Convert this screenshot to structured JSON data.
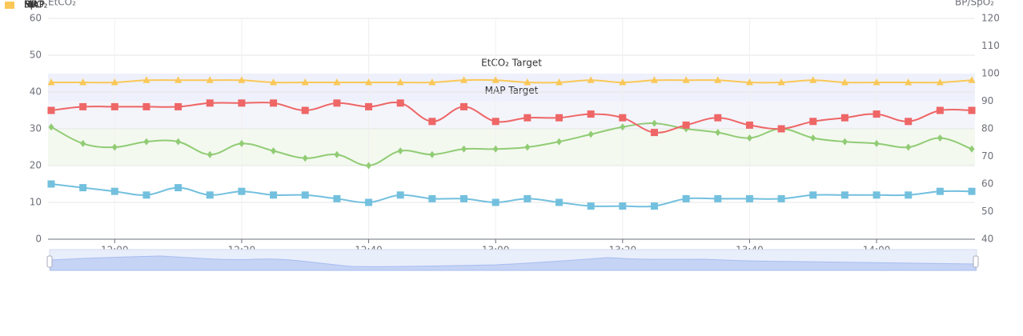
{
  "chart_data": {
    "type": "line",
    "y_axis_label": "EtCO₂",
    "y2_axis_label": "BP/SpO₂",
    "x": [
      "11:50",
      "11:55",
      "12:00",
      "12:05",
      "12:10",
      "12:15",
      "12:20",
      "12:25",
      "12:30",
      "12:35",
      "12:40",
      "12:45",
      "12:50",
      "12:55",
      "13:00",
      "13:05",
      "13:10",
      "13:15",
      "13:20",
      "13:25",
      "13:30",
      "13:35",
      "13:40",
      "13:45",
      "13:50",
      "13:55",
      "14:00",
      "14:05",
      "14:10",
      "14:15"
    ],
    "xlim": [
      "11:49:30",
      "14:15:30"
    ],
    "xticks": [
      "12:00",
      "12:20",
      "12:40",
      "13:00",
      "13:20",
      "13:40",
      "14:00"
    ],
    "ylim": [
      0,
      60
    ],
    "yticks": [
      0,
      10,
      20,
      30,
      40,
      50,
      60
    ],
    "y2lim": [
      40,
      120
    ],
    "y2ticks": [
      40,
      50,
      60,
      70,
      80,
      90,
      100,
      110,
      120
    ],
    "grid": true,
    "legend_position": "top-left",
    "series": [
      {
        "name": "RR",
        "color": "#73c0de",
        "marker": "square",
        "values": [
          15,
          14,
          13,
          12,
          14,
          12,
          13,
          12,
          12,
          11,
          10,
          12,
          11,
          11,
          10,
          11,
          10,
          9,
          9,
          9,
          11,
          11,
          11,
          11,
          12,
          12,
          12,
          12,
          13,
          13
        ]
      },
      {
        "name": "HR",
        "color": "#91cc75",
        "marker": "diamond",
        "values": [
          30.5,
          26,
          25,
          26.5,
          26.5,
          23,
          26,
          24,
          22,
          23,
          20,
          24,
          23,
          24.5,
          24.5,
          25,
          26.5,
          28.5,
          30.5,
          31.5,
          30,
          29,
          27.5,
          30,
          27.5,
          26.5,
          26,
          25,
          27.5,
          24.5
        ]
      },
      {
        "name": "MAP",
        "color": "#ee6666",
        "marker": "square",
        "values": [
          35,
          36,
          36,
          36,
          36,
          37,
          37,
          37,
          35,
          37,
          36,
          37,
          32,
          36,
          32,
          33,
          33,
          34,
          33,
          29,
          31,
          33,
          31,
          30,
          32,
          33,
          34,
          32,
          35,
          35
        ]
      },
      {
        "name": "SpO₂",
        "color": "#fac858",
        "marker": "triangle",
        "values": [
          42.6,
          42.6,
          42.6,
          43.2,
          43.2,
          43.2,
          43.2,
          42.6,
          42.6,
          42.6,
          42.6,
          42.6,
          42.6,
          43.2,
          43.2,
          42.6,
          42.6,
          43.2,
          42.6,
          43.2,
          43.2,
          43.2,
          42.6,
          42.6,
          43.2,
          42.6,
          42.6,
          42.6,
          42.6,
          43.2
        ]
      }
    ],
    "bands": [
      {
        "label": "EtCO₂ Target",
        "axis": "y2",
        "range": [
          90,
          100
        ],
        "color": "#eef0fb"
      },
      {
        "label": "MAP Target",
        "axis": "y2",
        "range": [
          80,
          90
        ],
        "color": "#f4f4fb"
      },
      {
        "axis": "y",
        "range": [
          20,
          30
        ],
        "color": "#f3f9ef"
      }
    ]
  }
}
